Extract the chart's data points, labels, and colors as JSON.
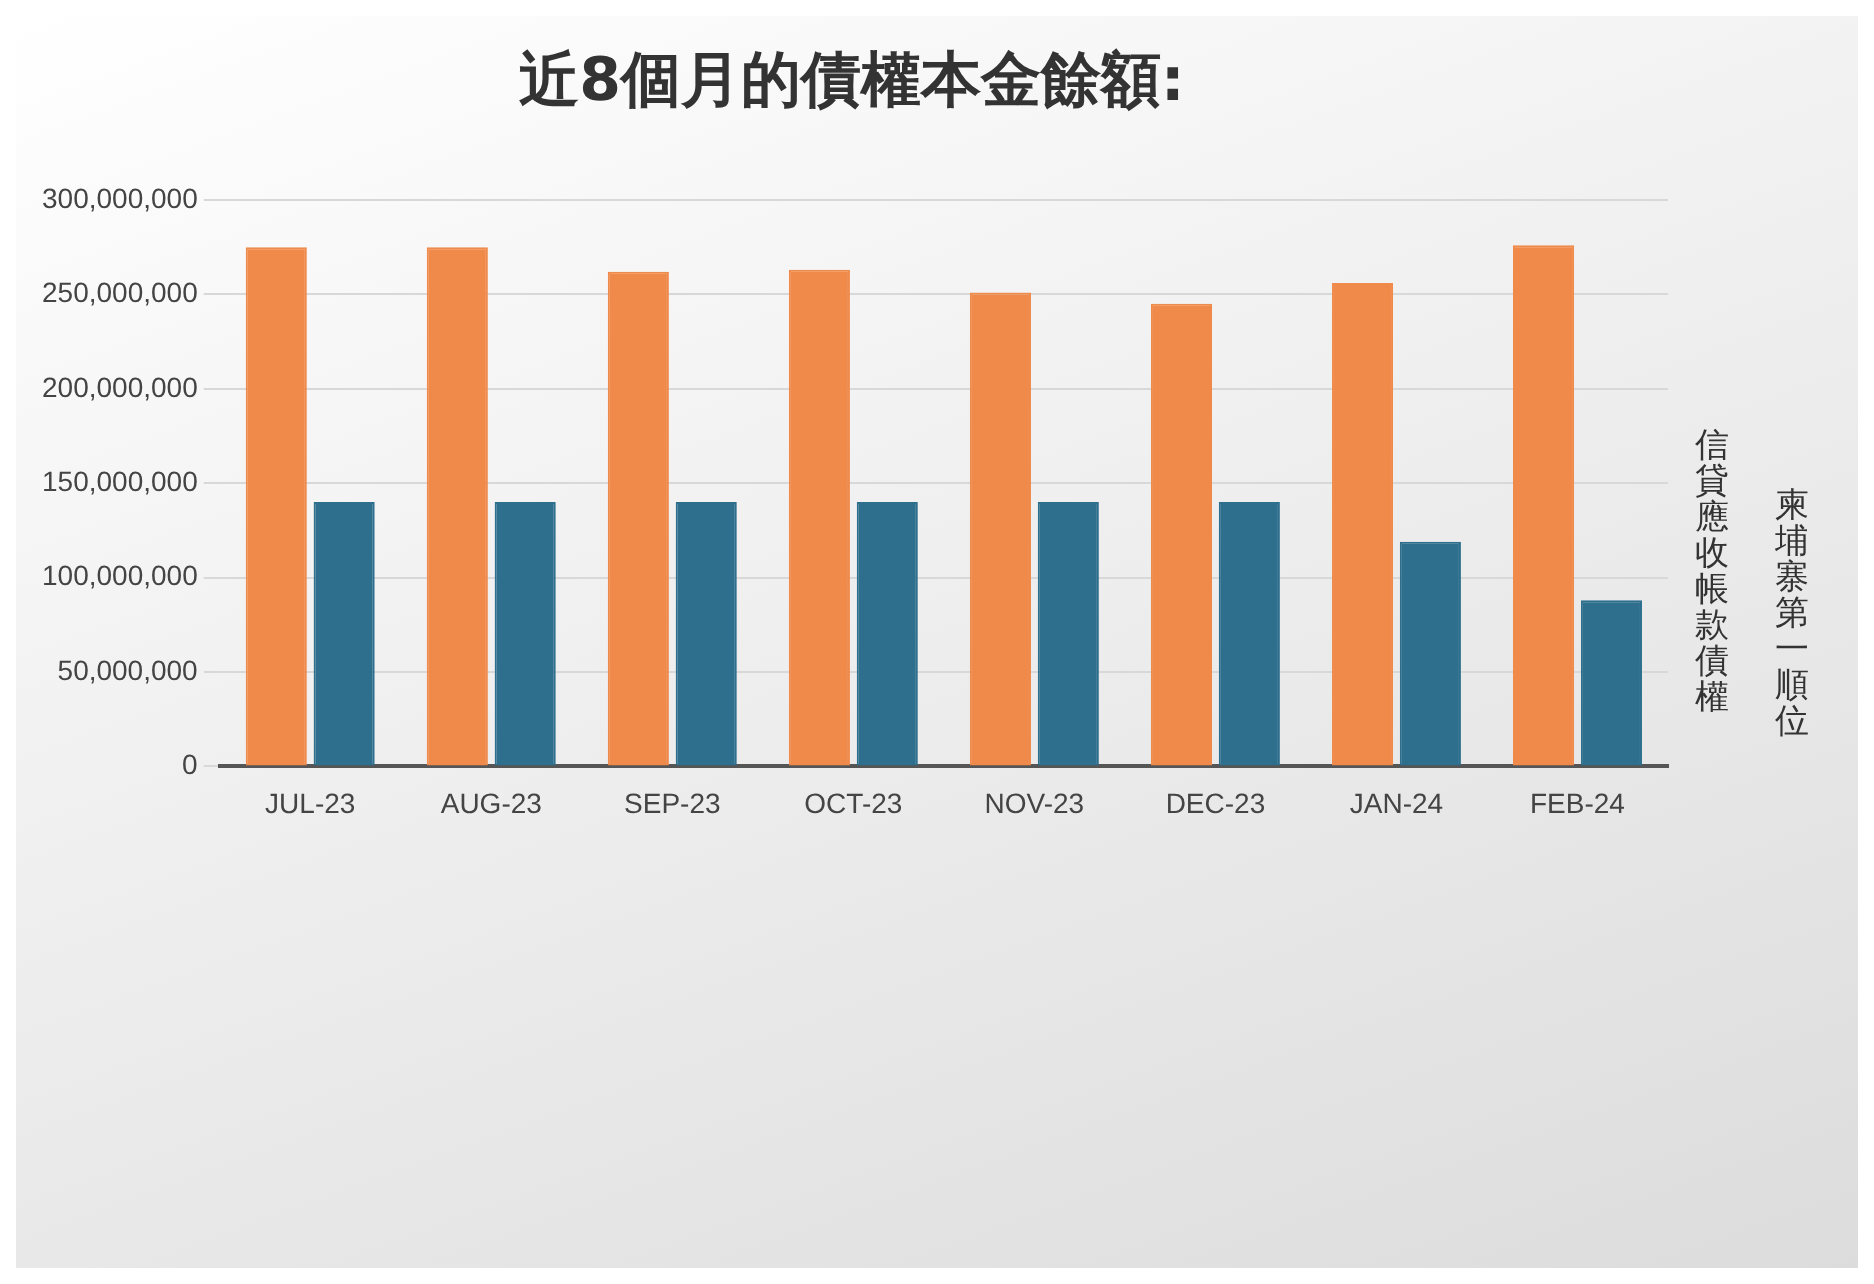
{
  "chart_data": {
    "type": "bar",
    "title": "近8個月的債權本金餘額:",
    "categories": [
      "JUL-23",
      "AUG-23",
      "SEP-23",
      "OCT-23",
      "NOV-23",
      "DEC-23",
      "JAN-24",
      "FEB-24"
    ],
    "series": [
      {
        "name": "信貸應收帳款債權",
        "color": "#f08a4b",
        "values": [
          275000000,
          275000000,
          262000000,
          263000000,
          251000000,
          245000000,
          256000000,
          276000000
        ]
      },
      {
        "name": "柬埔寨第一順位",
        "color": "#2e6f8e",
        "values": [
          140000000,
          140000000,
          140000000,
          140000000,
          140000000,
          140000000,
          119000000,
          88000000
        ]
      }
    ],
    "ylim": [
      0,
      300000000
    ],
    "yticks": [
      0,
      {
        "value": 50000000,
        "label": "50,000,000"
      },
      {
        "value": 100000000,
        "label": "100,000,000"
      },
      {
        "value": 150000000,
        "label": "150,000,000"
      },
      {
        "value": 200000000,
        "label": "200,000,000"
      },
      {
        "value": 250000000,
        "label": "250,000,000"
      },
      {
        "value": 300000000,
        "label": "300,000,000"
      }
    ],
    "grid": "y",
    "legend": "right"
  }
}
